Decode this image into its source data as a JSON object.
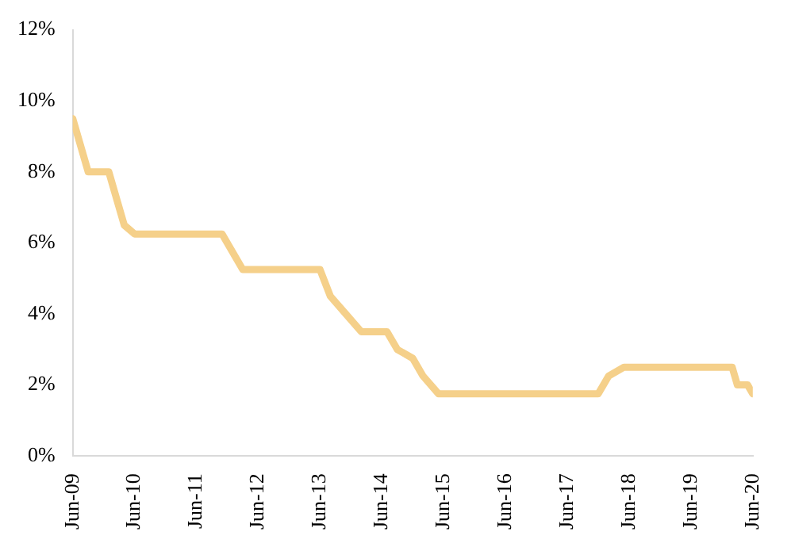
{
  "chart_data": {
    "type": "line",
    "x": [
      "2009-06",
      "2009-09",
      "2010-01",
      "2010-04",
      "2010-06",
      "2011-11",
      "2011-12",
      "2012-03",
      "2013-06",
      "2013-08",
      "2013-11",
      "2014-02",
      "2014-07",
      "2014-09",
      "2014-12",
      "2015-02",
      "2015-05",
      "2017-12",
      "2018-02",
      "2018-05",
      "2020-02",
      "2020-03",
      "2020-05",
      "2020-06"
    ],
    "series": [
      {
        "color": "#f5d08a",
        "values": [
          9.5,
          8,
          8,
          6.5,
          6.25,
          6.25,
          6,
          5.25,
          5.25,
          4.5,
          4,
          3.5,
          3.5,
          3,
          2.75,
          2.25,
          1.75,
          1.75,
          2.25,
          2.5,
          2.5,
          2,
          2,
          1.75
        ]
      }
    ],
    "xlim": [
      "2009-06",
      "2020-06"
    ],
    "xticks": [
      {
        "value": "2009-06",
        "label": "Jun-09"
      },
      {
        "value": "2010-06",
        "label": "Jun-10"
      },
      {
        "value": "2011-06",
        "label": "Jun-11"
      },
      {
        "value": "2012-06",
        "label": "Jun-12"
      },
      {
        "value": "2013-06",
        "label": "Jun-13"
      },
      {
        "value": "2014-06",
        "label": "Jun-14"
      },
      {
        "value": "2015-06",
        "label": "Jun-15"
      },
      {
        "value": "2016-06",
        "label": "Jun-16"
      },
      {
        "value": "2017-06",
        "label": "Jun-17"
      },
      {
        "value": "2018-06",
        "label": "Jun-18"
      },
      {
        "value": "2019-06",
        "label": "Jun-19"
      },
      {
        "value": "2020-06",
        "label": "Jun-20"
      }
    ],
    "ylim": [
      0,
      12
    ],
    "yticks": [
      {
        "value": 0,
        "label": "0%"
      },
      {
        "value": 2,
        "label": "2%"
      },
      {
        "value": 4,
        "label": "4%"
      },
      {
        "value": 6,
        "label": "6%"
      },
      {
        "value": 8,
        "label": "8%"
      },
      {
        "value": 10,
        "label": "10%"
      },
      {
        "value": 12,
        "label": "12%"
      }
    ],
    "grid": false
  }
}
